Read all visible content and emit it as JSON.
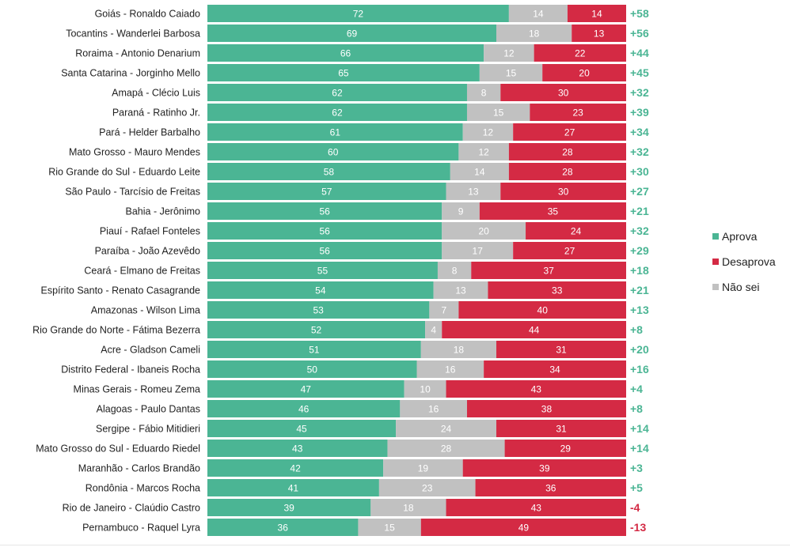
{
  "colors": {
    "approve": "#4bb594",
    "disapprove": "#d42a44",
    "unknown": "#c1c1c1",
    "net_positive": "#4bb594",
    "net_negative": "#d42a44"
  },
  "legend": [
    {
      "key": "approve",
      "label": "Aprova"
    },
    {
      "key": "disapprove",
      "label": "Desaprova"
    },
    {
      "key": "unknown",
      "label": "Não sei"
    }
  ],
  "chart_data": {
    "type": "bar",
    "orientation": "horizontal",
    "stacked": true,
    "xlim": [
      0,
      100
    ],
    "categories": [
      "Goiás - Ronaldo Caiado",
      "Tocantins - Wanderlei Barbosa",
      "Roraima - Antonio Denarium",
      "Santa Catarina - Jorginho Mello",
      "Amapá - Clécio Luis",
      "Paraná - Ratinho Jr.",
      "Pará - Helder Barbalho",
      "Mato Grosso - Mauro Mendes",
      "Rio Grande do Sul - Eduardo Leite",
      "São Paulo - Tarcísio de Freitas",
      "Bahia - Jerônimo",
      "Piauí - Rafael Fonteles",
      "Paraíba - João Azevêdo",
      "Ceará - Elmano de Freitas",
      "Espírito Santo - Renato Casagrande",
      "Amazonas - Wilson Lima",
      "Rio Grande do Norte - Fátima Bezerra",
      "Acre - Gladson Cameli",
      "Distrito Federal - Ibaneis Rocha",
      "Minas Gerais - Romeu Zema",
      "Alagoas - Paulo Dantas",
      "Sergipe - Fábio Mitidieri",
      "Mato Grosso do Sul - Eduardo Riedel",
      "Maranhão - Carlos Brandão",
      "Rondônia - Marcos Rocha",
      "Rio de Janeiro - Claúdio Castro",
      "Pernambuco - Raquel Lyra"
    ],
    "series": [
      {
        "name": "Aprova",
        "key": "approve",
        "values": [
          72,
          69,
          66,
          65,
          62,
          62,
          61,
          60,
          58,
          57,
          56,
          56,
          56,
          55,
          54,
          53,
          52,
          51,
          50,
          47,
          46,
          45,
          43,
          42,
          41,
          39,
          36
        ]
      },
      {
        "name": "Não sei",
        "key": "unknown",
        "values": [
          14,
          18,
          12,
          15,
          8,
          15,
          12,
          12,
          14,
          13,
          9,
          20,
          17,
          8,
          13,
          7,
          4,
          18,
          16,
          10,
          16,
          24,
          28,
          19,
          23,
          18,
          15
        ]
      },
      {
        "name": "Desaprova",
        "key": "disapprove",
        "values": [
          14,
          13,
          22,
          20,
          30,
          23,
          27,
          28,
          28,
          30,
          35,
          24,
          27,
          37,
          33,
          40,
          44,
          31,
          34,
          43,
          38,
          31,
          29,
          39,
          36,
          43,
          49
        ]
      }
    ],
    "net_labels": [
      "+58",
      "+56",
      "+44",
      "+45",
      "+32",
      "+39",
      "+34",
      "+32",
      "+30",
      "+27",
      "+21",
      "+32",
      "+29",
      "+18",
      "+21",
      "+13",
      "+8",
      "+20",
      "+16",
      "+4",
      "+8",
      "+14",
      "+14",
      "+3",
      "+5",
      "-4",
      "-13"
    ],
    "legend_position": "right"
  }
}
